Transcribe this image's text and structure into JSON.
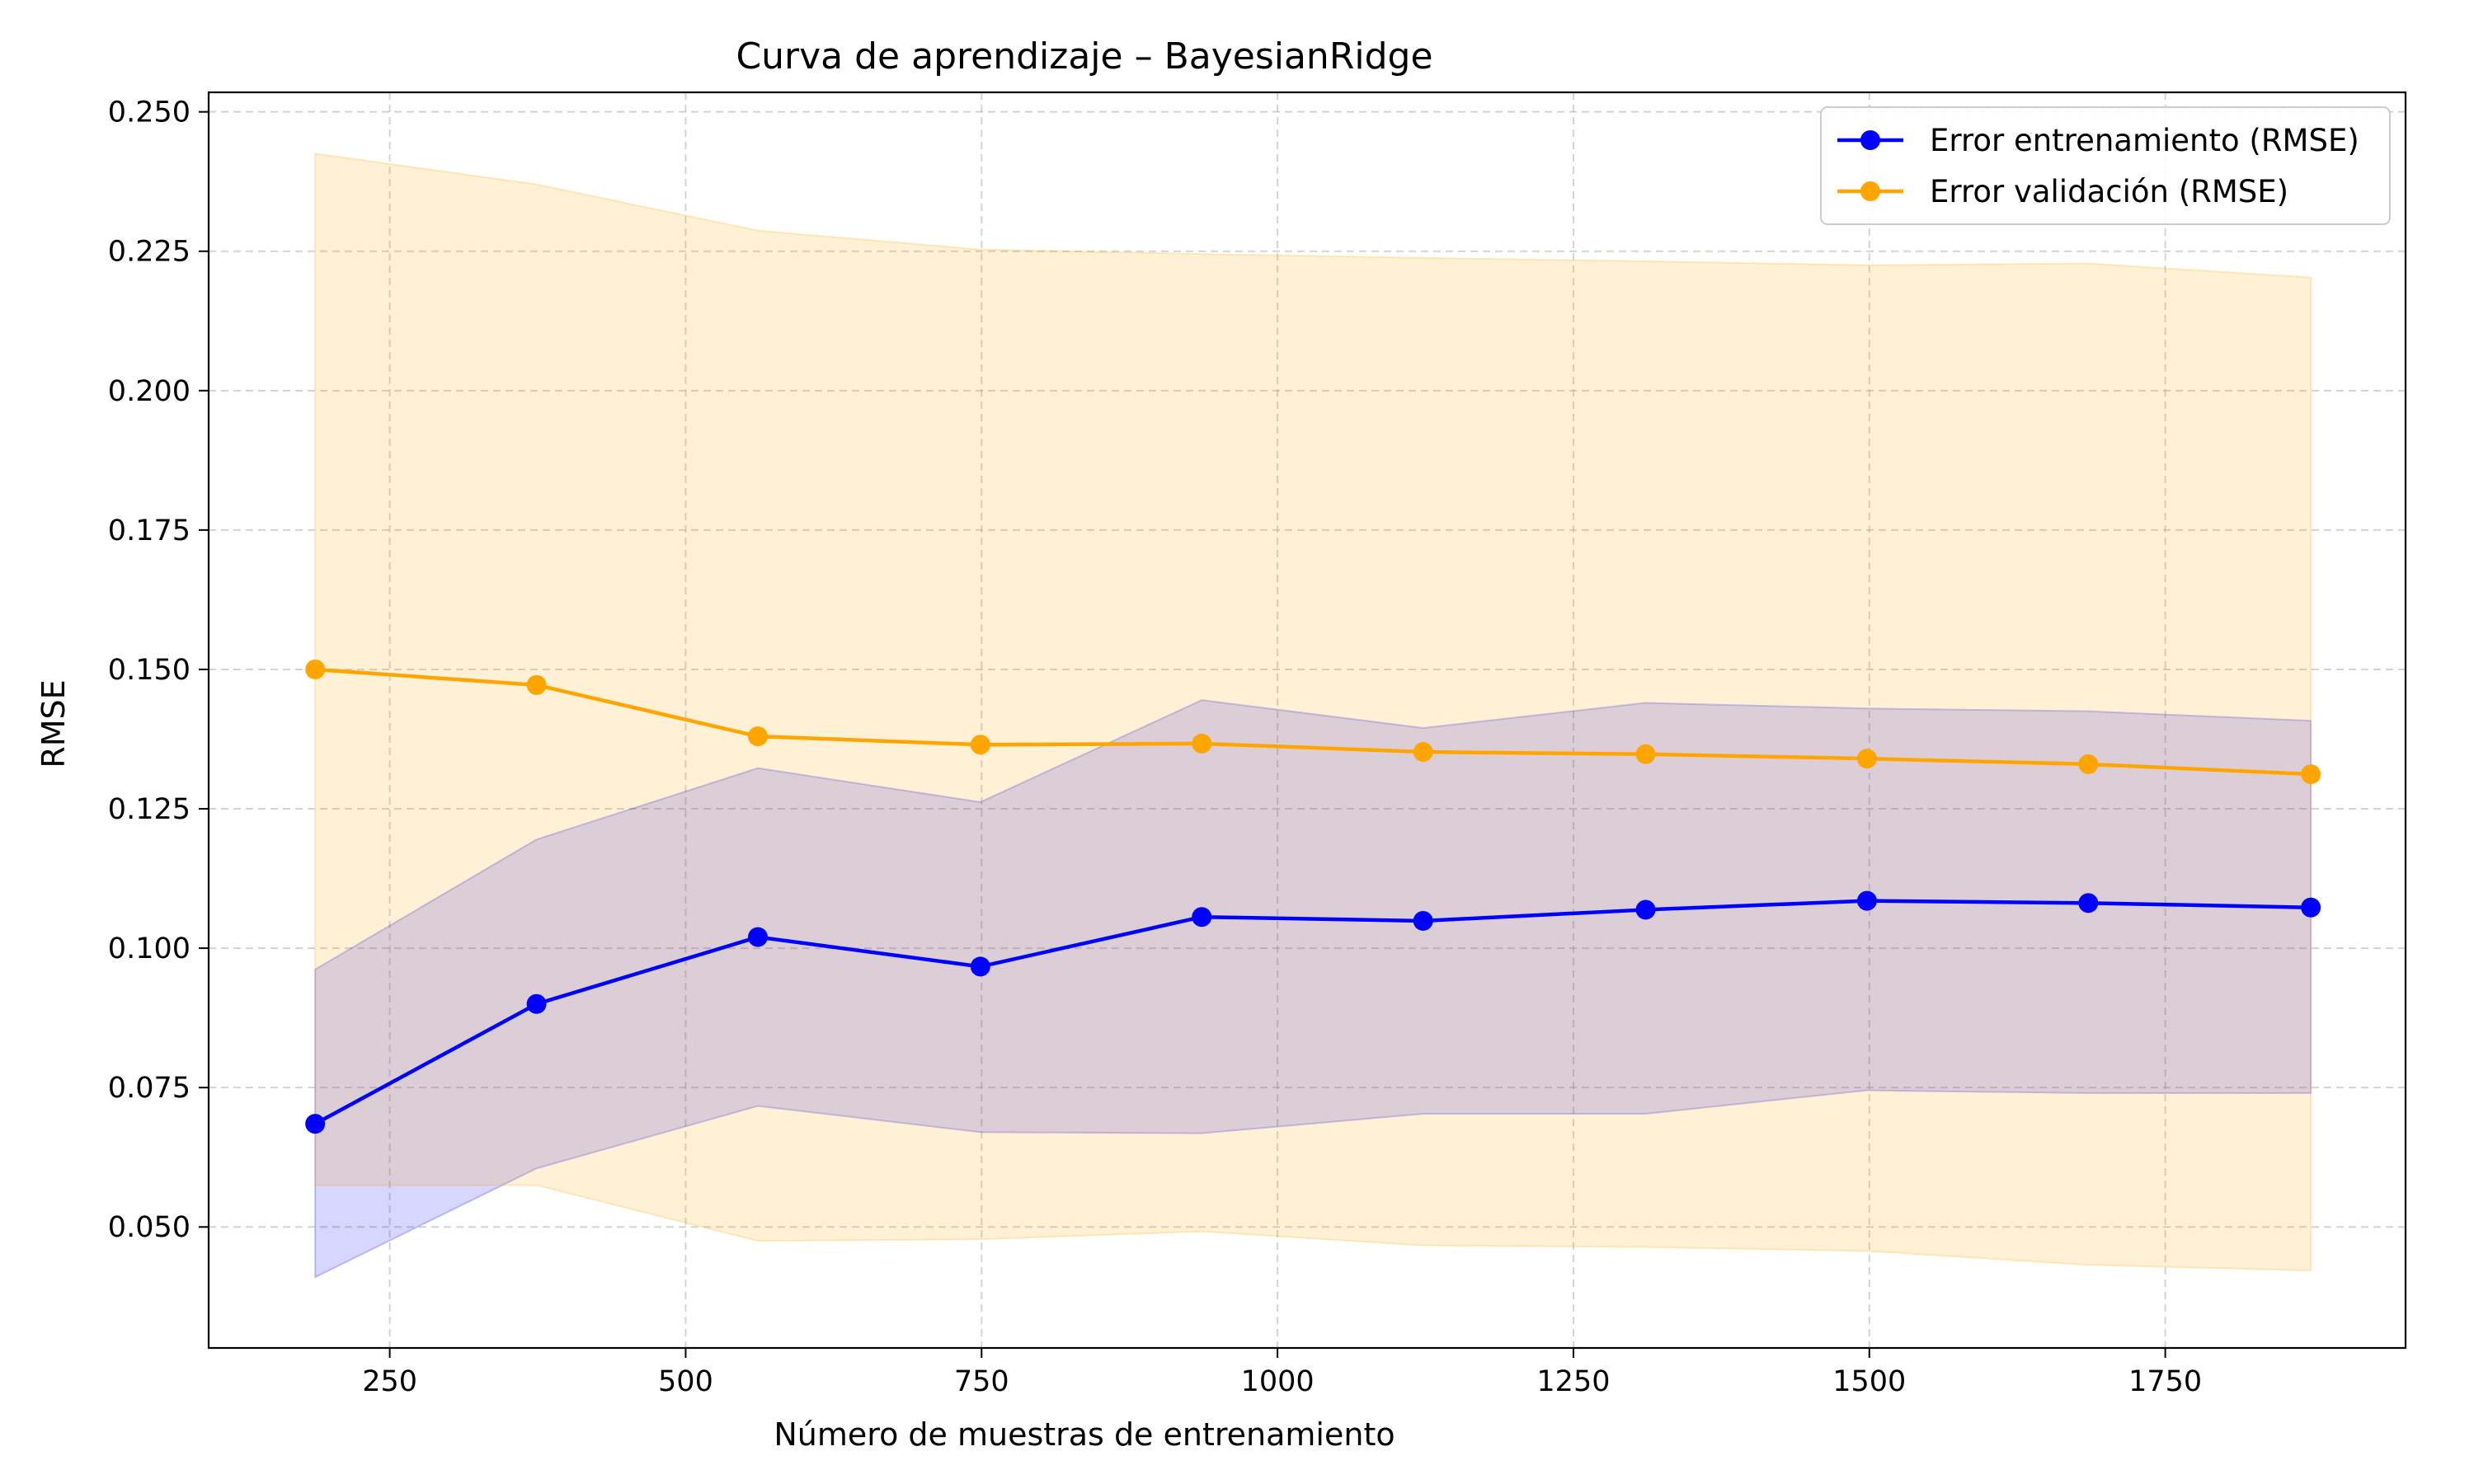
{
  "chart_data": {
    "type": "line",
    "title": "Curva de aprendizaje – BayesianRidge",
    "xlabel": "Número de muestras de entrenamiento",
    "ylabel": "RMSE",
    "xlim": [
      97,
      1953
    ],
    "ylim": [
      0.0283,
      0.2535
    ],
    "xticks": [
      250,
      500,
      750,
      1000,
      1250,
      1500,
      1750
    ],
    "yticks": [
      0.05,
      0.075,
      0.1,
      0.125,
      0.15,
      0.175,
      0.2,
      0.225,
      0.25
    ],
    "xtick_labels": [
      "250",
      "500",
      "750",
      "1000",
      "1250",
      "1500",
      "1750"
    ],
    "ytick_labels": [
      "0.050",
      "0.075",
      "0.100",
      "0.125",
      "0.150",
      "0.175",
      "0.200",
      "0.225",
      "0.250"
    ],
    "grid": true,
    "legend_position": "top-right",
    "x": [
      187,
      374,
      561,
      749,
      936,
      1123,
      1311,
      1498,
      1685,
      1873
    ],
    "series": [
      {
        "name": "Error entrenamiento (RMSE)",
        "color": "#0000ff",
        "band_color": "#0000ff",
        "values": [
          0.0685,
          0.09,
          0.102,
          0.0967,
          0.1056,
          0.1049,
          0.1069,
          0.1085,
          0.1081,
          0.1073
        ],
        "band_lower": [
          0.041,
          0.0605,
          0.0717,
          0.067,
          0.0668,
          0.0703,
          0.0703,
          0.0745,
          0.074,
          0.074
        ],
        "band_upper": [
          0.0962,
          0.1195,
          0.1323,
          0.1262,
          0.1445,
          0.1395,
          0.144,
          0.143,
          0.1425,
          0.1408
        ]
      },
      {
        "name": "Error validación (RMSE)",
        "color": "#ffa500",
        "band_color": "#ffa500",
        "values": [
          0.15,
          0.1472,
          0.138,
          0.1365,
          0.1367,
          0.1352,
          0.1348,
          0.134,
          0.133,
          0.1312
        ],
        "band_lower": [
          0.0575,
          0.0575,
          0.0475,
          0.0478,
          0.0492,
          0.0467,
          0.0464,
          0.0457,
          0.0432,
          0.0422
        ],
        "band_upper": [
          0.2425,
          0.237,
          0.2287,
          0.2253,
          0.2245,
          0.2238,
          0.2232,
          0.2225,
          0.2228,
          0.2203
        ]
      }
    ]
  }
}
